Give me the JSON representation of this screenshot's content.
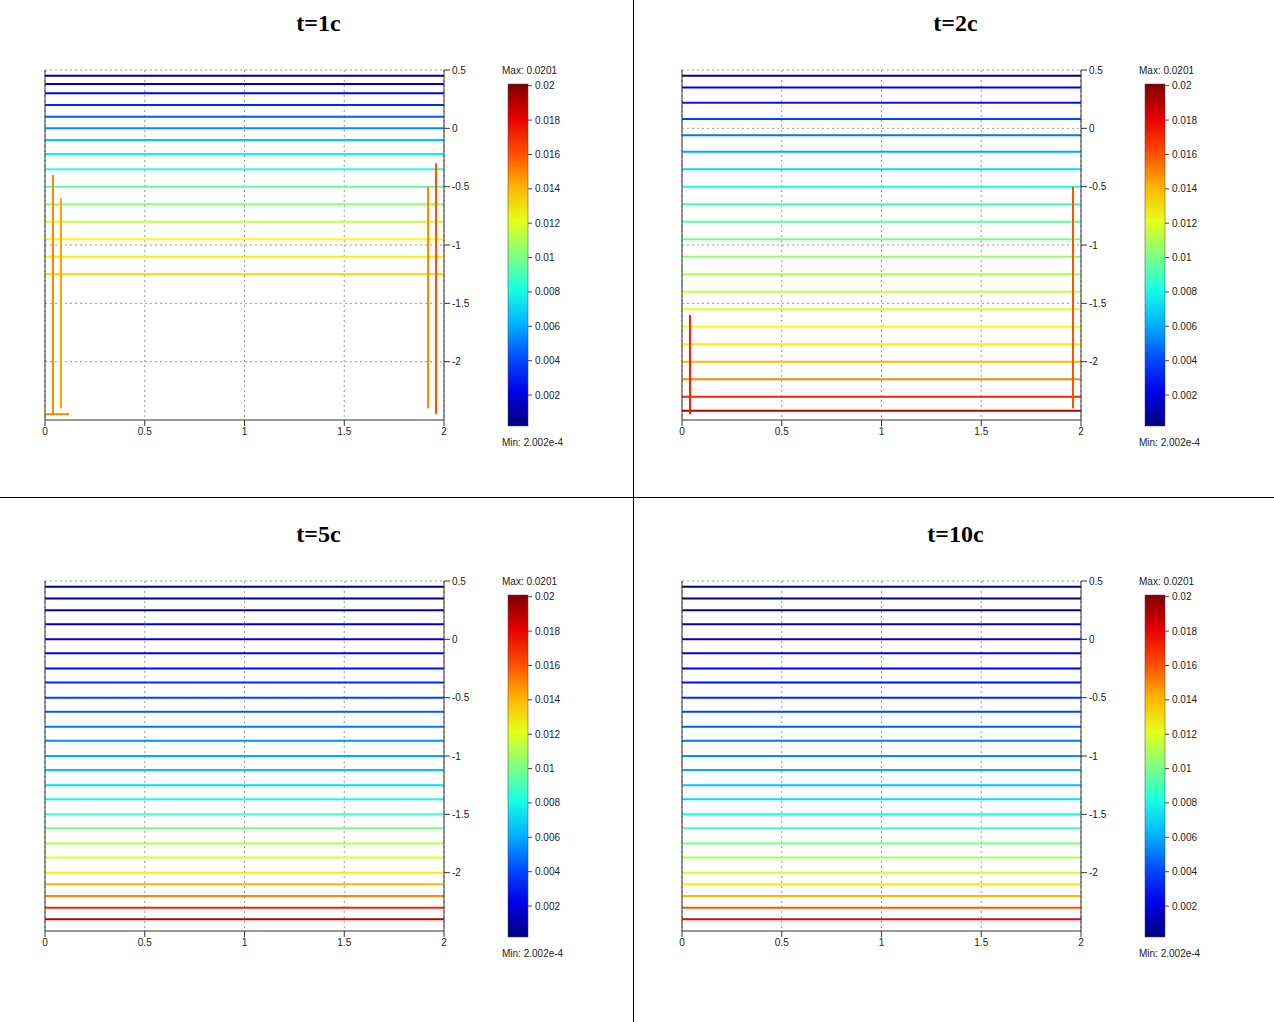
{
  "chart_data": [
    {
      "type": "contour",
      "title": "t=1c",
      "xlim": [
        0,
        2
      ],
      "xticks": [
        0,
        0.5,
        1,
        1.5,
        2
      ],
      "ylim": [
        -2.5,
        0.5
      ],
      "yticks": [
        -2,
        -1.5,
        -1,
        -0.5,
        0,
        0.5
      ],
      "grid": true,
      "colorbar": {
        "max": {
          "value": 0.0201,
          "label": "Max: 0.0201"
        },
        "min": {
          "value": 0.0002002,
          "label": "Min: 2.002e-4"
        },
        "ticks": [
          0.002,
          0.004,
          0.006,
          0.008,
          0.01,
          0.012,
          0.014,
          0.016,
          0.018,
          0.02
        ]
      },
      "levels": [
        {
          "z": 0.45,
          "value": 0.0006
        },
        {
          "z": 0.38,
          "value": 0.0015
        },
        {
          "z": 0.3,
          "value": 0.0025
        },
        {
          "z": 0.2,
          "value": 0.0035
        },
        {
          "z": 0.1,
          "value": 0.0045
        },
        {
          "z": 0,
          "value": 0.0055
        },
        {
          "z": -0.1,
          "value": 0.0065
        },
        {
          "z": -0.22,
          "value": 0.0075
        },
        {
          "z": -0.35,
          "value": 0.0085
        },
        {
          "z": -0.5,
          "value": 0.0095
        },
        {
          "z": -0.65,
          "value": 0.0105
        },
        {
          "z": -0.8,
          "value": 0.0115
        },
        {
          "z": -0.95,
          "value": 0.0125
        },
        {
          "z": -1.1,
          "value": 0.013
        },
        {
          "z": -1.25,
          "value": 0.0135
        }
      ],
      "segments": [
        {
          "x": [
            0.04,
            0.04
          ],
          "z": [
            -0.4,
            -2.45
          ],
          "value": 0.015
        },
        {
          "x": [
            0.08,
            0.08
          ],
          "z": [
            -0.6,
            -2.4
          ],
          "value": 0.0145
        },
        {
          "x": [
            1.96,
            1.96
          ],
          "z": [
            -0.3,
            -2.45
          ],
          "value": 0.016
        },
        {
          "x": [
            1.92,
            1.92
          ],
          "z": [
            -0.5,
            -2.4
          ],
          "value": 0.015
        },
        {
          "x": [
            0,
            0.12
          ],
          "z": [
            -2.45,
            -2.45
          ],
          "value": 0.015
        }
      ]
    },
    {
      "type": "contour",
      "title": "t=2c",
      "xlim": [
        0,
        2
      ],
      "xticks": [
        0,
        0.5,
        1,
        1.5,
        2
      ],
      "ylim": [
        -2.5,
        0.5
      ],
      "yticks": [
        -2,
        -1.5,
        -1,
        -0.5,
        0,
        0.5
      ],
      "grid": true,
      "colorbar": {
        "max": {
          "value": 0.0201,
          "label": "Max: 0.0201"
        },
        "min": {
          "value": 0.0002002,
          "label": "Min: 2.002e-4"
        },
        "ticks": [
          0.002,
          0.004,
          0.006,
          0.008,
          0.01,
          0.012,
          0.014,
          0.016,
          0.018,
          0.02
        ]
      },
      "levels": [
        {
          "z": 0.45,
          "value": 0.0005
        },
        {
          "z": 0.35,
          "value": 0.002
        },
        {
          "z": 0.22,
          "value": 0.003
        },
        {
          "z": 0.08,
          "value": 0.004
        },
        {
          "z": -0.06,
          "value": 0.005
        },
        {
          "z": -0.2,
          "value": 0.006
        },
        {
          "z": -0.35,
          "value": 0.007
        },
        {
          "z": -0.5,
          "value": 0.008
        },
        {
          "z": -0.65,
          "value": 0.009
        },
        {
          "z": -0.8,
          "value": 0.0095
        },
        {
          "z": -0.95,
          "value": 0.01
        },
        {
          "z": -1.1,
          "value": 0.0105
        },
        {
          "z": -1.25,
          "value": 0.011
        },
        {
          "z": -1.4,
          "value": 0.0115
        },
        {
          "z": -1.55,
          "value": 0.012
        },
        {
          "z": -1.7,
          "value": 0.0125
        },
        {
          "z": -1.85,
          "value": 0.013
        },
        {
          "z": -2,
          "value": 0.014
        },
        {
          "z": -2.15,
          "value": 0.015
        },
        {
          "z": -2.3,
          "value": 0.017
        },
        {
          "z": -2.42,
          "value": 0.019
        }
      ],
      "segments": [
        {
          "x": [
            1.96,
            1.96
          ],
          "z": [
            -0.5,
            -2.4
          ],
          "value": 0.016
        },
        {
          "x": [
            0.04,
            0.04
          ],
          "z": [
            -1.6,
            -2.45
          ],
          "value": 0.017
        }
      ]
    },
    {
      "type": "contour",
      "title": "t=5c",
      "xlim": [
        0,
        2
      ],
      "xticks": [
        0,
        0.5,
        1,
        1.5,
        2
      ],
      "ylim": [
        -2.5,
        0.5
      ],
      "yticks": [
        -2,
        -1.5,
        -1,
        -0.5,
        0,
        0.5
      ],
      "grid": true,
      "colorbar": {
        "max": {
          "value": 0.0201,
          "label": "Max: 0.0201"
        },
        "min": {
          "value": 0.0002002,
          "label": "Min: 2.002e-4"
        },
        "ticks": [
          0.002,
          0.004,
          0.006,
          0.008,
          0.01,
          0.012,
          0.014,
          0.016,
          0.018,
          0.02
        ]
      },
      "levels": [
        {
          "z": 0.45,
          "value": 0.0003
        },
        {
          "z": 0.35,
          "value": 0.0006
        },
        {
          "z": 0.25,
          "value": 0.001
        },
        {
          "z": 0.13,
          "value": 0.0015
        },
        {
          "z": 0,
          "value": 0.002
        },
        {
          "z": -0.12,
          "value": 0.0025
        },
        {
          "z": -0.25,
          "value": 0.003
        },
        {
          "z": -0.37,
          "value": 0.0035
        },
        {
          "z": -0.5,
          "value": 0.004
        },
        {
          "z": -0.62,
          "value": 0.0045
        },
        {
          "z": -0.75,
          "value": 0.005
        },
        {
          "z": -0.87,
          "value": 0.0055
        },
        {
          "z": -1,
          "value": 0.006
        },
        {
          "z": -1.12,
          "value": 0.0065
        },
        {
          "z": -1.25,
          "value": 0.007
        },
        {
          "z": -1.37,
          "value": 0.008
        },
        {
          "z": -1.5,
          "value": 0.009
        },
        {
          "z": -1.62,
          "value": 0.01
        },
        {
          "z": -1.75,
          "value": 0.011
        },
        {
          "z": -1.87,
          "value": 0.012
        },
        {
          "z": -2,
          "value": 0.013
        },
        {
          "z": -2.1,
          "value": 0.014
        },
        {
          "z": -2.2,
          "value": 0.015
        },
        {
          "z": -2.3,
          "value": 0.017
        },
        {
          "z": -2.4,
          "value": 0.019
        }
      ],
      "segments": []
    },
    {
      "type": "contour",
      "title": "t=10c",
      "xlim": [
        0,
        2
      ],
      "xticks": [
        0,
        0.5,
        1,
        1.5,
        2
      ],
      "ylim": [
        -2.5,
        0.5
      ],
      "yticks": [
        -2,
        -1.5,
        -1,
        -0.5,
        0,
        0.5
      ],
      "grid": true,
      "colorbar": {
        "max": {
          "value": 0.0201,
          "label": "Max: 0.0201"
        },
        "min": {
          "value": 0.0002002,
          "label": "Min: 2.002e-4"
        },
        "ticks": [
          0.002,
          0.004,
          0.006,
          0.008,
          0.01,
          0.012,
          0.014,
          0.016,
          0.018,
          0.02
        ]
      },
      "levels": [
        {
          "z": 0.45,
          "value": 0.0003
        },
        {
          "z": 0.35,
          "value": 0.0005
        },
        {
          "z": 0.25,
          "value": 0.0008
        },
        {
          "z": 0.13,
          "value": 0.0012
        },
        {
          "z": 0,
          "value": 0.0016
        },
        {
          "z": -0.12,
          "value": 0.002
        },
        {
          "z": -0.25,
          "value": 0.0025
        },
        {
          "z": -0.37,
          "value": 0.003
        },
        {
          "z": -0.5,
          "value": 0.0035
        },
        {
          "z": -0.62,
          "value": 0.004
        },
        {
          "z": -0.75,
          "value": 0.0045
        },
        {
          "z": -0.87,
          "value": 0.005
        },
        {
          "z": -1,
          "value": 0.0055
        },
        {
          "z": -1.12,
          "value": 0.006
        },
        {
          "z": -1.25,
          "value": 0.0065
        },
        {
          "z": -1.37,
          "value": 0.007
        },
        {
          "z": -1.5,
          "value": 0.008
        },
        {
          "z": -1.62,
          "value": 0.009
        },
        {
          "z": -1.75,
          "value": 0.01
        },
        {
          "z": -1.87,
          "value": 0.011
        },
        {
          "z": -2,
          "value": 0.012
        },
        {
          "z": -2.1,
          "value": 0.013
        },
        {
          "z": -2.2,
          "value": 0.014
        },
        {
          "z": -2.3,
          "value": 0.016
        },
        {
          "z": -2.4,
          "value": 0.018
        }
      ],
      "segments": []
    }
  ]
}
